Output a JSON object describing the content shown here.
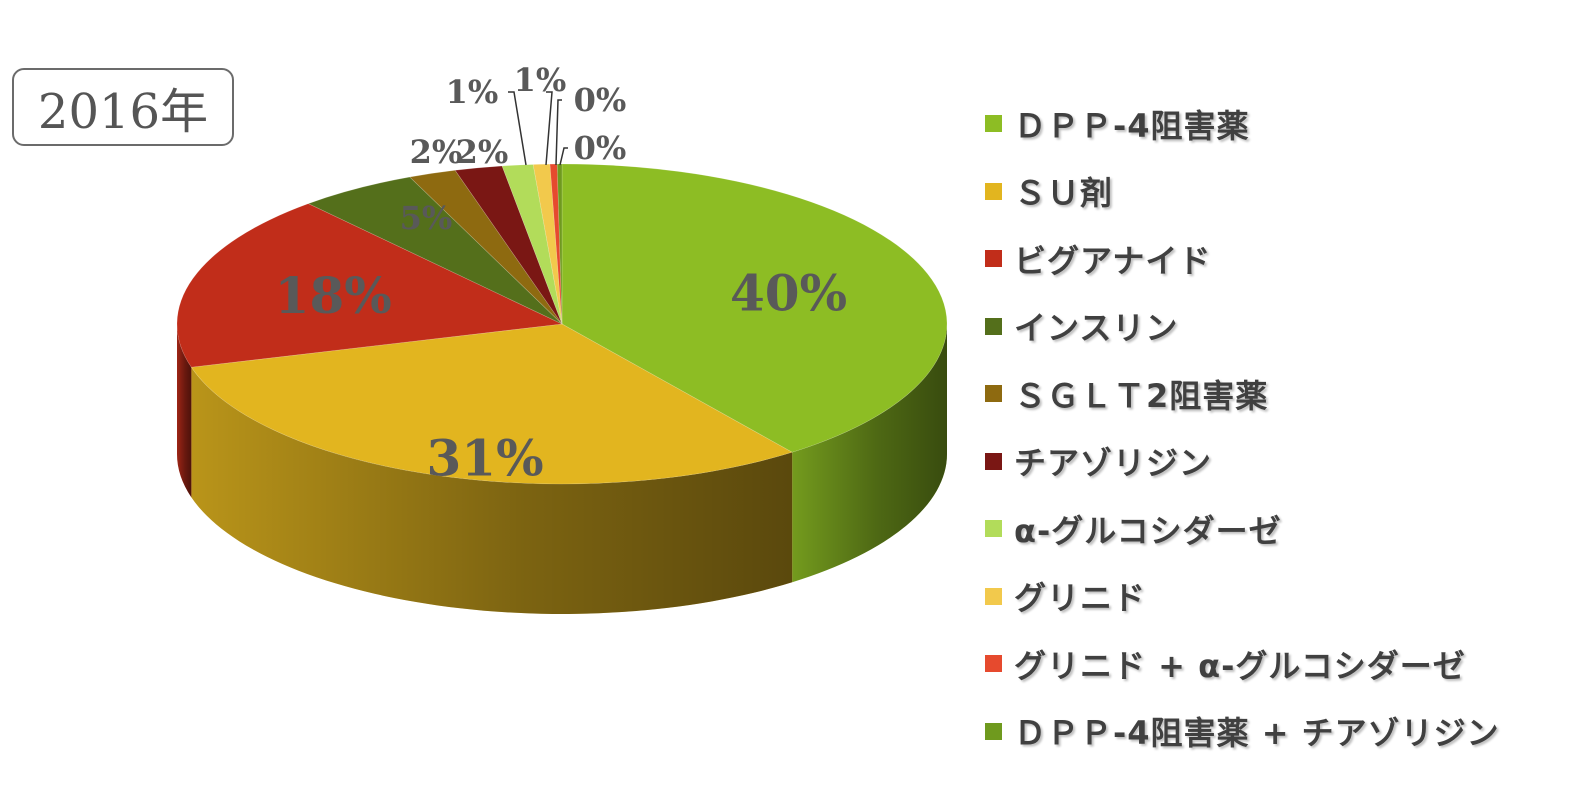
{
  "badge": {
    "year": "2016年"
  },
  "chart_data": {
    "type": "pie",
    "style": "3d",
    "title": "",
    "legend_position": "right",
    "slices": [
      {
        "name": "ＤＰＰ-4阻害薬",
        "value": 40,
        "label": "40%",
        "color": "#8dbd24"
      },
      {
        "name": "ＳＵ剤",
        "value": 31,
        "label": "31%",
        "color": "#e2b51f"
      },
      {
        "name": "ビグアナイド",
        "value": 18,
        "label": "18%",
        "color": "#c12d1a"
      },
      {
        "name": "インスリン",
        "value": 5,
        "label": "5%",
        "color": "#546f1b"
      },
      {
        "name": "ＳＧＬＴ2阻害薬",
        "value": 2,
        "label": "2%",
        "color": "#8e6a10"
      },
      {
        "name": "チアゾリジン",
        "value": 2,
        "label": "2%",
        "color": "#7a1714"
      },
      {
        "name": "α-グルコシダーゼ",
        "value": 1.3,
        "label": "1%",
        "color": "#b2dc5a"
      },
      {
        "name": "グリニド",
        "value": 0.7,
        "label": "1%",
        "color": "#f2c94c"
      },
      {
        "name": "グリニド + α-グルコシダーゼ",
        "value": 0.3,
        "label": "0%",
        "color": "#e64a2e"
      },
      {
        "name": "ＤＰＰ-4阻害薬 + チアゾリジン",
        "value": 0.2,
        "label": "0%",
        "color": "#6f9a1e"
      }
    ]
  }
}
